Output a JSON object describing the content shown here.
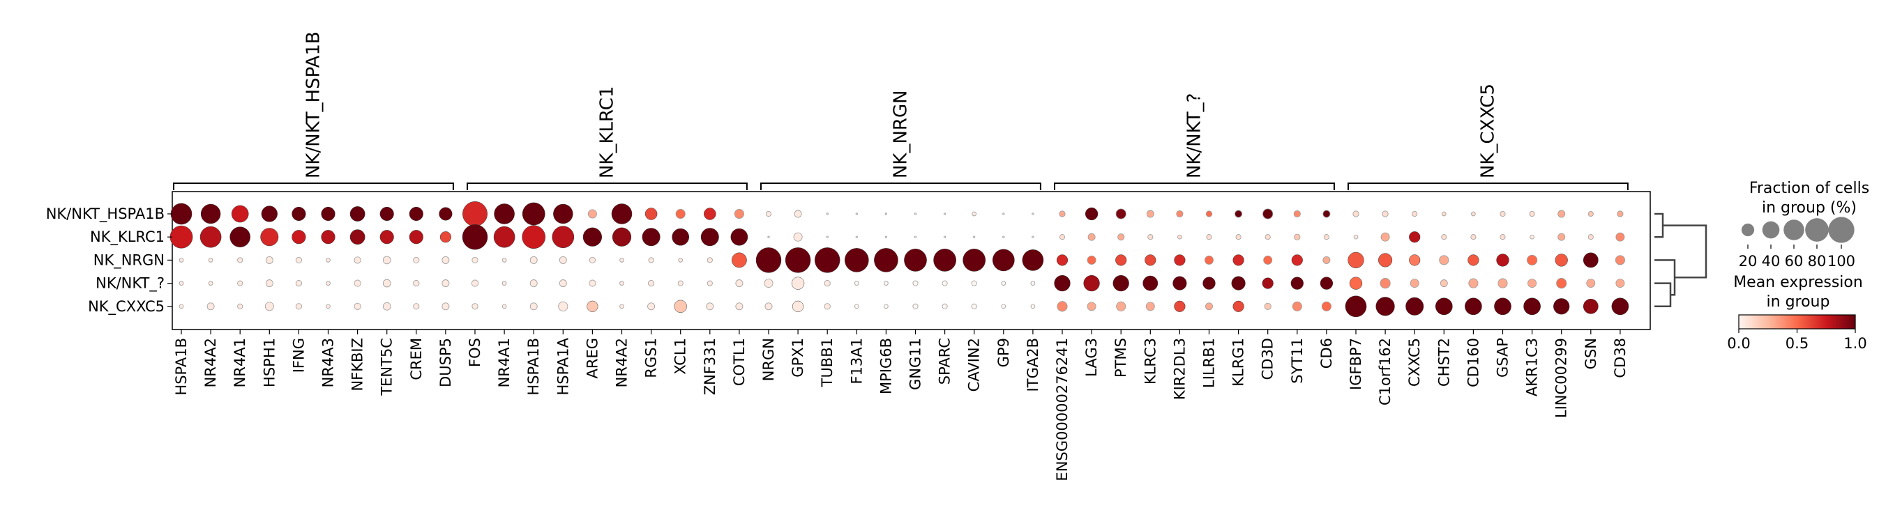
{
  "chart_data": {
    "type": "dotplot",
    "rows": [
      "NK/NKT_HSPA1B",
      "NK_KLRC1",
      "NK_NRGN",
      "NK/NKT_?",
      "NK_CXXC5"
    ],
    "genes": [
      "HSPA1B",
      "NR4A2",
      "NR4A1",
      "HSPH1",
      "IFNG",
      "NR4A3",
      "NFKBIZ",
      "TENT5C",
      "CREM",
      "DUSP5",
      "FOS",
      "NR4A1",
      "HSPA1B",
      "HSPA1A",
      "AREG",
      "NR4A2",
      "RGS1",
      "XCL1",
      "ZNF331",
      "COTL1",
      "NRGN",
      "GPX1",
      "TUBB1",
      "F13A1",
      "MPIG6B",
      "GNG11",
      "SPARC",
      "CAVIN2",
      "GP9",
      "ITGA2B",
      "ENSG00000276241",
      "LAG3",
      "PTMS",
      "KLRC3",
      "KIR2DL3",
      "LILRB1",
      "KLRG1",
      "CD3D",
      "SYT11",
      "CD6",
      "IGFBP7",
      "C1orf162",
      "CXXC5",
      "CHST2",
      "CD160",
      "GSAP",
      "AKR1C3",
      "LINC00299",
      "GSN",
      "CD38"
    ],
    "groups": [
      {
        "label": "NK/NKT_HSPA1B",
        "start": 0,
        "end": 9
      },
      {
        "label": "NK_KLRC1",
        "start": 10,
        "end": 19
      },
      {
        "label": "NK_NRGN",
        "start": 20,
        "end": 29
      },
      {
        "label": "NK/NKT_?",
        "start": 30,
        "end": 39
      },
      {
        "label": "NK_CXXC5",
        "start": 40,
        "end": 49
      }
    ],
    "fraction_pct": [
      [
        65,
        55,
        40,
        35,
        25,
        25,
        30,
        25,
        25,
        22,
        92,
        60,
        75,
        55,
        8,
        60,
        18,
        10,
        18,
        10,
        2,
        5,
        0,
        0,
        0,
        0,
        0,
        1,
        0,
        0,
        3,
        20,
        12,
        5,
        4,
        3,
        5,
        12,
        4,
        5,
        3,
        3,
        2,
        1,
        1,
        2,
        2,
        5,
        2,
        3
      ],
      [
        75,
        65,
        60,
        45,
        25,
        25,
        30,
        25,
        25,
        15,
        95,
        65,
        80,
        70,
        50,
        50,
        45,
        40,
        45,
        40,
        0,
        8,
        0,
        0,
        0,
        0,
        0,
        0,
        0,
        0,
        2,
        5,
        4,
        2,
        1,
        2,
        2,
        2,
        3,
        2,
        1,
        8,
        15,
        2,
        2,
        2,
        1,
        5,
        2,
        8
      ],
      [
        1,
        1,
        2,
        5,
        3,
        1,
        4,
        6,
        3,
        5,
        3,
        1,
        5,
        5,
        3,
        1,
        2,
        1,
        2,
        30,
        95,
        95,
        95,
        85,
        85,
        75,
        75,
        75,
        70,
        65,
        15,
        8,
        15,
        15,
        15,
        8,
        15,
        8,
        15,
        5,
        35,
        25,
        15,
        10,
        15,
        20,
        12,
        20,
        30,
        10
      ],
      [
        1,
        1,
        2,
        5,
        3,
        1,
        4,
        6,
        3,
        5,
        4,
        1,
        5,
        5,
        4,
        1,
        3,
        2,
        2,
        5,
        8,
        20,
        3,
        1,
        1,
        2,
        2,
        2,
        1,
        1,
        35,
        35,
        35,
        30,
        25,
        20,
        25,
        15,
        20,
        20,
        20,
        12,
        8,
        5,
        10,
        10,
        8,
        12,
        8,
        8
      ],
      [
        1,
        5,
        2,
        8,
        3,
        1,
        4,
        6,
        3,
        5,
        3,
        1,
        5,
        10,
        15,
        1,
        5,
        20,
        5,
        5,
        5,
        15,
        3,
        1,
        1,
        2,
        2,
        2,
        1,
        1,
        12,
        8,
        10,
        8,
        15,
        5,
        15,
        4,
        10,
        10,
        65,
        50,
        45,
        40,
        40,
        40,
        40,
        35,
        30,
        40
      ]
    ],
    "mean_expr": [
      [
        1.0,
        1.0,
        0.75,
        1.0,
        1.0,
        1.0,
        1.0,
        1.0,
        1.0,
        1.0,
        0.7,
        1.0,
        1.0,
        1.0,
        0.3,
        1.0,
        0.6,
        0.5,
        0.7,
        0.4,
        0.05,
        0.05,
        0,
        0,
        0,
        0,
        0,
        0.05,
        0,
        0,
        0.3,
        1.0,
        0.95,
        0.3,
        0.4,
        0.5,
        1.0,
        1.0,
        0.4,
        1.0,
        0.1,
        0.1,
        0.1,
        0.1,
        0.1,
        0.1,
        0.1,
        0.3,
        0.2,
        0.3
      ],
      [
        0.75,
        0.8,
        1.0,
        0.7,
        0.75,
        0.8,
        0.9,
        0.8,
        0.8,
        0.6,
        1.0,
        0.8,
        0.75,
        0.8,
        1.0,
        0.9,
        1.0,
        1.0,
        1.0,
        1.0,
        0.05,
        0.05,
        0,
        0,
        0,
        0,
        0,
        0,
        0,
        0,
        0.1,
        0.3,
        0.3,
        0.1,
        0.1,
        0.1,
        0.1,
        0.1,
        0.2,
        0.1,
        0.05,
        0.3,
        0.8,
        0.1,
        0.1,
        0.1,
        0.05,
        0.3,
        0.1,
        0.4
      ],
      [
        0.05,
        0.05,
        0.05,
        0.05,
        0.05,
        0.05,
        0.05,
        0.05,
        0.05,
        0.05,
        0.05,
        0.05,
        0.05,
        0.05,
        0.05,
        0.05,
        0.05,
        0.05,
        0.05,
        0.55,
        1.0,
        1.0,
        1.0,
        1.0,
        1.0,
        1.0,
        1.0,
        1.0,
        1.0,
        1.0,
        0.7,
        0.5,
        0.6,
        0.6,
        0.7,
        0.5,
        0.7,
        0.5,
        0.7,
        0.3,
        0.55,
        0.55,
        0.45,
        0.3,
        0.55,
        0.8,
        0.5,
        0.55,
        1.0,
        0.4
      ],
      [
        0.05,
        0.05,
        0.05,
        0.05,
        0.05,
        0.05,
        0.05,
        0.05,
        0.05,
        0.05,
        0.05,
        0.05,
        0.05,
        0.05,
        0.05,
        0.05,
        0.05,
        0.05,
        0.05,
        0.05,
        0.05,
        0.05,
        0.05,
        0,
        0,
        0,
        0,
        0,
        0,
        0,
        1.0,
        0.85,
        1.0,
        1.0,
        1.0,
        1.0,
        1.0,
        0.85,
        1.0,
        1.0,
        0.5,
        0.4,
        0.3,
        0.2,
        0.3,
        0.3,
        0.3,
        0.5,
        0.3,
        0.3
      ],
      [
        0.05,
        0.05,
        0.05,
        0.05,
        0.05,
        0.05,
        0.05,
        0.05,
        0.05,
        0.05,
        0.05,
        0.05,
        0.05,
        0.05,
        0.2,
        0.05,
        0.05,
        0.2,
        0.05,
        0.05,
        0.05,
        0.05,
        0.05,
        0,
        0,
        0,
        0,
        0,
        0,
        0,
        0.4,
        0.3,
        0.3,
        0.3,
        0.6,
        0.3,
        0.6,
        0.2,
        0.4,
        0.5,
        1.0,
        1.0,
        1.0,
        1.0,
        1.0,
        1.0,
        1.0,
        1.0,
        0.9,
        1.0
      ]
    ],
    "size_legend": {
      "title_line1": "Fraction of cells",
      "title_line2": "in group (%)",
      "ticks": [
        20,
        40,
        60,
        80,
        100
      ]
    },
    "color_legend": {
      "title_line1": "Mean expression",
      "title_line2": "in group",
      "ticks": [
        "0.0",
        "0.5",
        "1.0"
      ],
      "colormap": [
        "#fff5f0",
        "#fcbba1",
        "#fb6a4a",
        "#cb181d",
        "#67000d"
      ]
    },
    "dendrogram": {
      "leaves": [
        "NK/NKT_HSPA1B",
        "NK_KLRC1",
        "NK_NRGN",
        "NK/NKT_?",
        "NK_CXXC5"
      ],
      "merges": [
        [
          0,
          1
        ],
        [
          3,
          4
        ],
        [
          2,
          "3+4"
        ],
        [
          "0+1",
          "2+3+4"
        ]
      ]
    }
  }
}
